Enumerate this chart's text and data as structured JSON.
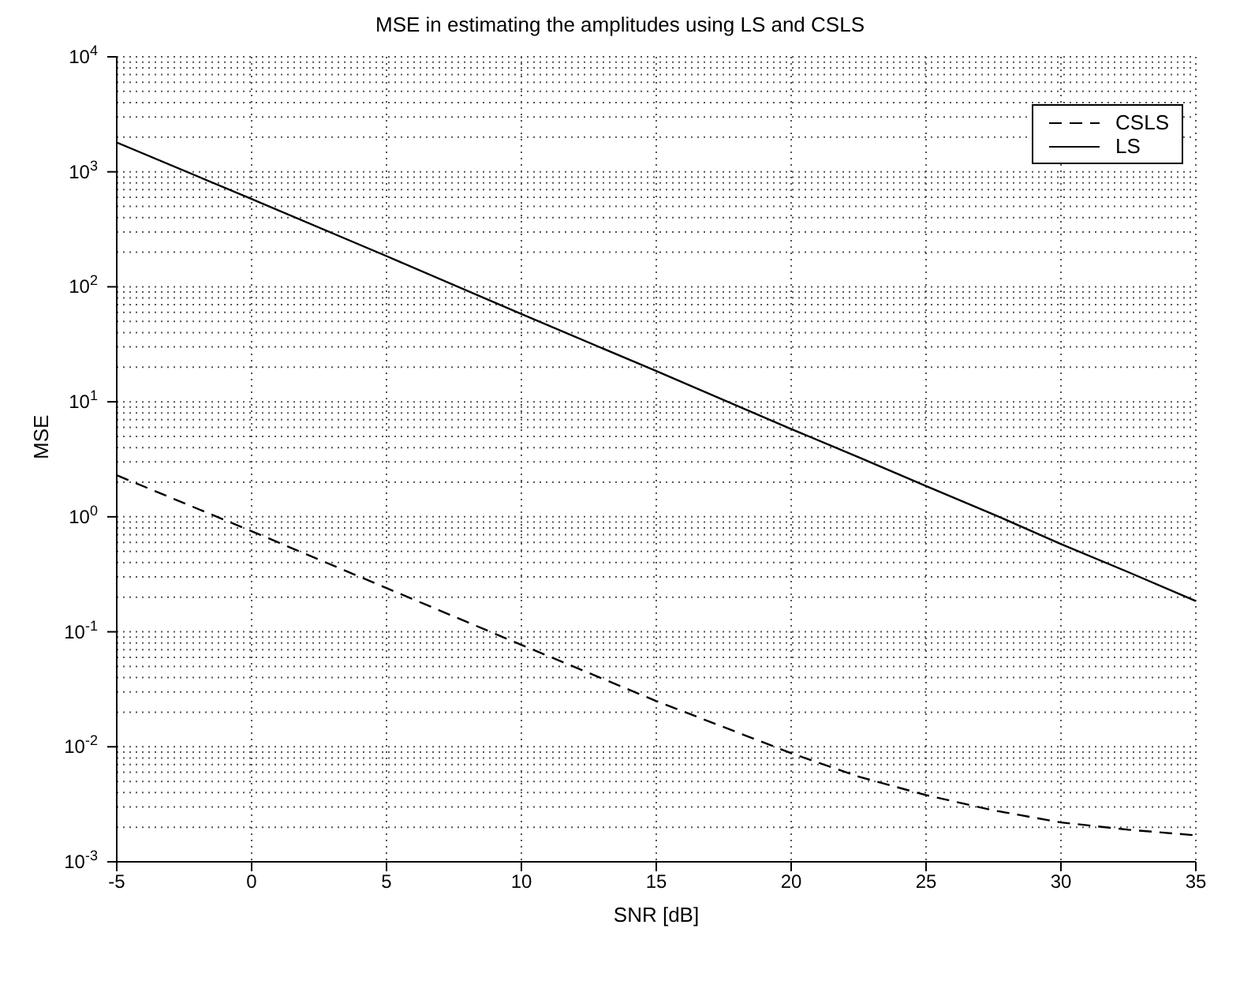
{
  "chart_data": {
    "type": "line",
    "title": "MSE in estimating the amplitudes using LS and CSLS",
    "xlabel": "SNR [dB]",
    "ylabel": "MSE",
    "x": [
      -5,
      0,
      5,
      10,
      15,
      20,
      22.5,
      25,
      27.5,
      30,
      32.5,
      35
    ],
    "series": [
      {
        "name": "CSLS",
        "color": "#000000",
        "line_style": "dashed",
        "values": [
          2.3,
          0.75,
          0.24,
          0.077,
          0.025,
          0.0088,
          0.0055,
          0.0038,
          0.0028,
          0.0022,
          0.0019,
          0.0017
        ]
      },
      {
        "name": "LS",
        "color": "#000000",
        "line_style": "solid",
        "values": [
          1800,
          580,
          185,
          58,
          18.5,
          5.8,
          3.3,
          1.85,
          1.05,
          0.58,
          0.33,
          0.185
        ]
      }
    ],
    "xlim": [
      -5,
      35
    ],
    "xticks": [
      -5,
      0,
      5,
      10,
      15,
      20,
      25,
      30,
      35
    ],
    "ylim": [
      0.001,
      10000
    ],
    "yticks": [
      {
        "value": 0.001,
        "label": "10$^{-3}$"
      },
      {
        "value": 0.01,
        "label": "10$^{-2}$"
      },
      {
        "value": 0.1,
        "label": "10$^{-1}$"
      },
      {
        "value": 1,
        "label": "10$^{0}$"
      },
      {
        "value": 10,
        "label": "10$^{1}$"
      },
      {
        "value": 100,
        "label": "10$^{2}$"
      },
      {
        "value": 1000,
        "label": "10$^{3}$"
      },
      {
        "value": 10000,
        "label": "10$^{4}$"
      }
    ],
    "log": "y",
    "grid": true,
    "legend": "top right",
    "marker": "none"
  }
}
